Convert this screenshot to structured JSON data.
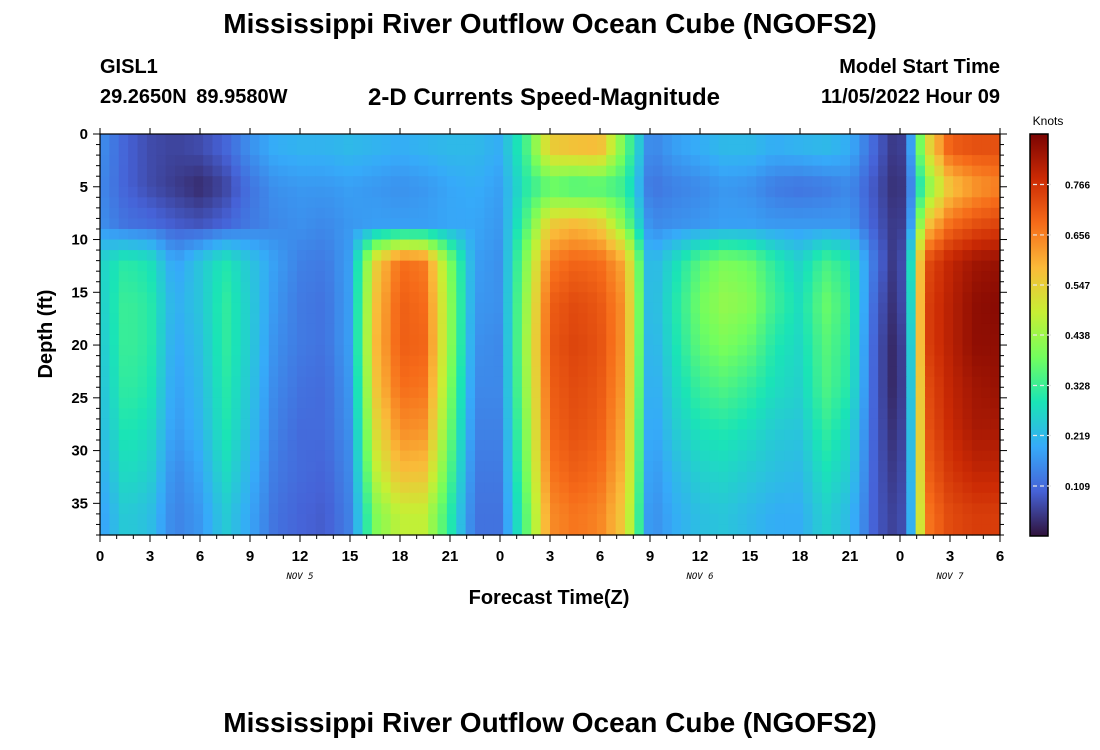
{
  "header": {
    "title": "Mississippi River Outflow Ocean Cube (NGOFS2)",
    "station": "GISL1",
    "coordinates": "29.2650N  89.9580W",
    "subtitle": "2-D Currents Speed-Magnitude",
    "model_start_label": "Model Start Time",
    "model_start_value": "11/05/2022 Hour 09"
  },
  "footer": {
    "title": "Mississippi River Outflow Ocean Cube (NGOFS2)"
  },
  "chart_data": {
    "type": "heatmap",
    "xlabel": "Forecast Time(Z)",
    "ylabel": "Depth (ft)",
    "x_range_hours": [
      0,
      54
    ],
    "x_tick_step_hours": 3,
    "x_tick_labels": [
      "0",
      "3",
      "6",
      "9",
      "12",
      "15",
      "18",
      "21",
      "0",
      "3",
      "6",
      "9",
      "12",
      "15",
      "18",
      "21",
      "0",
      "3",
      "6"
    ],
    "day_labels": [
      {
        "label": "NOV 5",
        "hour": 12
      },
      {
        "label": "NOV 6",
        "hour": 36
      },
      {
        "label": "NOV 7",
        "hour": 51
      }
    ],
    "y_range_ft": [
      0,
      38
    ],
    "y_ticks": [
      0,
      5,
      10,
      15,
      20,
      25,
      30,
      35
    ],
    "y_reversed": true,
    "colorbar": {
      "unit": "Knots",
      "range": [
        0.0,
        0.876
      ],
      "ticks": [
        0.109,
        0.219,
        0.328,
        0.438,
        0.547,
        0.656,
        0.766
      ],
      "colormap": [
        "#30123b",
        "#4662d7",
        "#36aaf9",
        "#1ae4b6",
        "#72fe5e",
        "#c7ef34",
        "#faba39",
        "#f66b19",
        "#cb2a04",
        "#7a0403"
      ]
    },
    "depth_layers_ft": [
      1.5,
      5,
      8.5,
      12,
      16,
      20,
      24,
      28,
      32,
      36
    ],
    "time_hours": [
      0,
      1.5,
      3,
      4.5,
      6,
      7.5,
      9,
      10.5,
      12,
      13.5,
      15,
      16.5,
      18,
      19.5,
      21,
      22.5,
      24,
      25.5,
      27,
      28.5,
      30,
      31.5,
      33,
      34.5,
      36,
      37.5,
      39,
      40.5,
      42,
      43.5,
      45,
      46.5,
      47.5,
      48,
      48.5,
      49.5,
      51,
      52.5,
      54
    ],
    "speed_knots": [
      [
        0.16,
        0.1,
        0.07,
        0.06,
        0.07,
        0.1,
        0.16,
        0.2,
        0.21,
        0.21,
        0.22,
        0.21,
        0.2,
        0.21,
        0.22,
        0.22,
        0.2,
        0.33,
        0.55,
        0.57,
        0.58,
        0.38,
        0.14,
        0.18,
        0.2,
        0.22,
        0.22,
        0.2,
        0.21,
        0.22,
        0.2,
        0.1,
        0.05,
        0.04,
        0.12,
        0.5,
        0.7,
        0.72,
        0.72
      ],
      [
        0.15,
        0.1,
        0.07,
        0.05,
        0.03,
        0.06,
        0.12,
        0.16,
        0.17,
        0.17,
        0.18,
        0.17,
        0.16,
        0.17,
        0.19,
        0.2,
        0.18,
        0.3,
        0.36,
        0.33,
        0.34,
        0.32,
        0.12,
        0.14,
        0.15,
        0.17,
        0.16,
        0.13,
        0.12,
        0.13,
        0.15,
        0.08,
        0.04,
        0.03,
        0.1,
        0.38,
        0.56,
        0.62,
        0.65
      ],
      [
        0.16,
        0.12,
        0.11,
        0.09,
        0.08,
        0.1,
        0.13,
        0.15,
        0.16,
        0.15,
        0.17,
        0.18,
        0.18,
        0.18,
        0.19,
        0.19,
        0.17,
        0.34,
        0.55,
        0.58,
        0.55,
        0.4,
        0.15,
        0.16,
        0.17,
        0.18,
        0.18,
        0.17,
        0.17,
        0.17,
        0.17,
        0.09,
        0.05,
        0.04,
        0.11,
        0.55,
        0.68,
        0.72,
        0.74
      ],
      [
        0.26,
        0.31,
        0.29,
        0.18,
        0.24,
        0.3,
        0.24,
        0.18,
        0.14,
        0.13,
        0.18,
        0.54,
        0.68,
        0.66,
        0.4,
        0.18,
        0.16,
        0.4,
        0.66,
        0.69,
        0.68,
        0.6,
        0.2,
        0.28,
        0.36,
        0.4,
        0.38,
        0.31,
        0.26,
        0.34,
        0.3,
        0.12,
        0.05,
        0.04,
        0.2,
        0.72,
        0.79,
        0.83,
        0.84
      ],
      [
        0.25,
        0.33,
        0.31,
        0.2,
        0.24,
        0.32,
        0.25,
        0.17,
        0.13,
        0.12,
        0.18,
        0.57,
        0.7,
        0.68,
        0.42,
        0.17,
        0.16,
        0.42,
        0.7,
        0.73,
        0.71,
        0.63,
        0.2,
        0.3,
        0.39,
        0.43,
        0.41,
        0.33,
        0.28,
        0.38,
        0.32,
        0.1,
        0.04,
        0.04,
        0.18,
        0.74,
        0.8,
        0.85,
        0.86
      ],
      [
        0.24,
        0.33,
        0.31,
        0.19,
        0.23,
        0.32,
        0.25,
        0.16,
        0.13,
        0.12,
        0.18,
        0.58,
        0.7,
        0.69,
        0.42,
        0.16,
        0.15,
        0.43,
        0.71,
        0.74,
        0.72,
        0.63,
        0.19,
        0.29,
        0.37,
        0.4,
        0.37,
        0.3,
        0.27,
        0.36,
        0.31,
        0.09,
        0.03,
        0.03,
        0.16,
        0.74,
        0.8,
        0.85,
        0.85
      ],
      [
        0.23,
        0.32,
        0.3,
        0.18,
        0.22,
        0.31,
        0.24,
        0.15,
        0.12,
        0.11,
        0.17,
        0.56,
        0.68,
        0.67,
        0.4,
        0.15,
        0.15,
        0.42,
        0.7,
        0.73,
        0.71,
        0.62,
        0.18,
        0.27,
        0.33,
        0.35,
        0.32,
        0.28,
        0.26,
        0.35,
        0.3,
        0.09,
        0.03,
        0.03,
        0.15,
        0.72,
        0.79,
        0.83,
        0.84
      ],
      [
        0.22,
        0.3,
        0.28,
        0.17,
        0.21,
        0.3,
        0.23,
        0.14,
        0.11,
        0.11,
        0.16,
        0.52,
        0.64,
        0.63,
        0.38,
        0.14,
        0.14,
        0.4,
        0.69,
        0.72,
        0.7,
        0.6,
        0.17,
        0.25,
        0.29,
        0.3,
        0.28,
        0.25,
        0.24,
        0.32,
        0.27,
        0.09,
        0.04,
        0.04,
        0.14,
        0.71,
        0.78,
        0.82,
        0.82
      ],
      [
        0.2,
        0.28,
        0.26,
        0.15,
        0.19,
        0.28,
        0.21,
        0.13,
        0.11,
        0.1,
        0.15,
        0.47,
        0.58,
        0.57,
        0.35,
        0.13,
        0.13,
        0.38,
        0.67,
        0.7,
        0.68,
        0.58,
        0.16,
        0.22,
        0.26,
        0.27,
        0.25,
        0.23,
        0.22,
        0.29,
        0.25,
        0.09,
        0.05,
        0.05,
        0.13,
        0.69,
        0.76,
        0.79,
        0.79
      ],
      [
        0.18,
        0.25,
        0.23,
        0.14,
        0.17,
        0.25,
        0.19,
        0.12,
        0.1,
        0.09,
        0.14,
        0.4,
        0.48,
        0.48,
        0.31,
        0.12,
        0.12,
        0.35,
        0.64,
        0.67,
        0.65,
        0.55,
        0.15,
        0.2,
        0.23,
        0.24,
        0.22,
        0.2,
        0.2,
        0.26,
        0.22,
        0.09,
        0.06,
        0.06,
        0.12,
        0.66,
        0.73,
        0.75,
        0.75
      ]
    ]
  }
}
